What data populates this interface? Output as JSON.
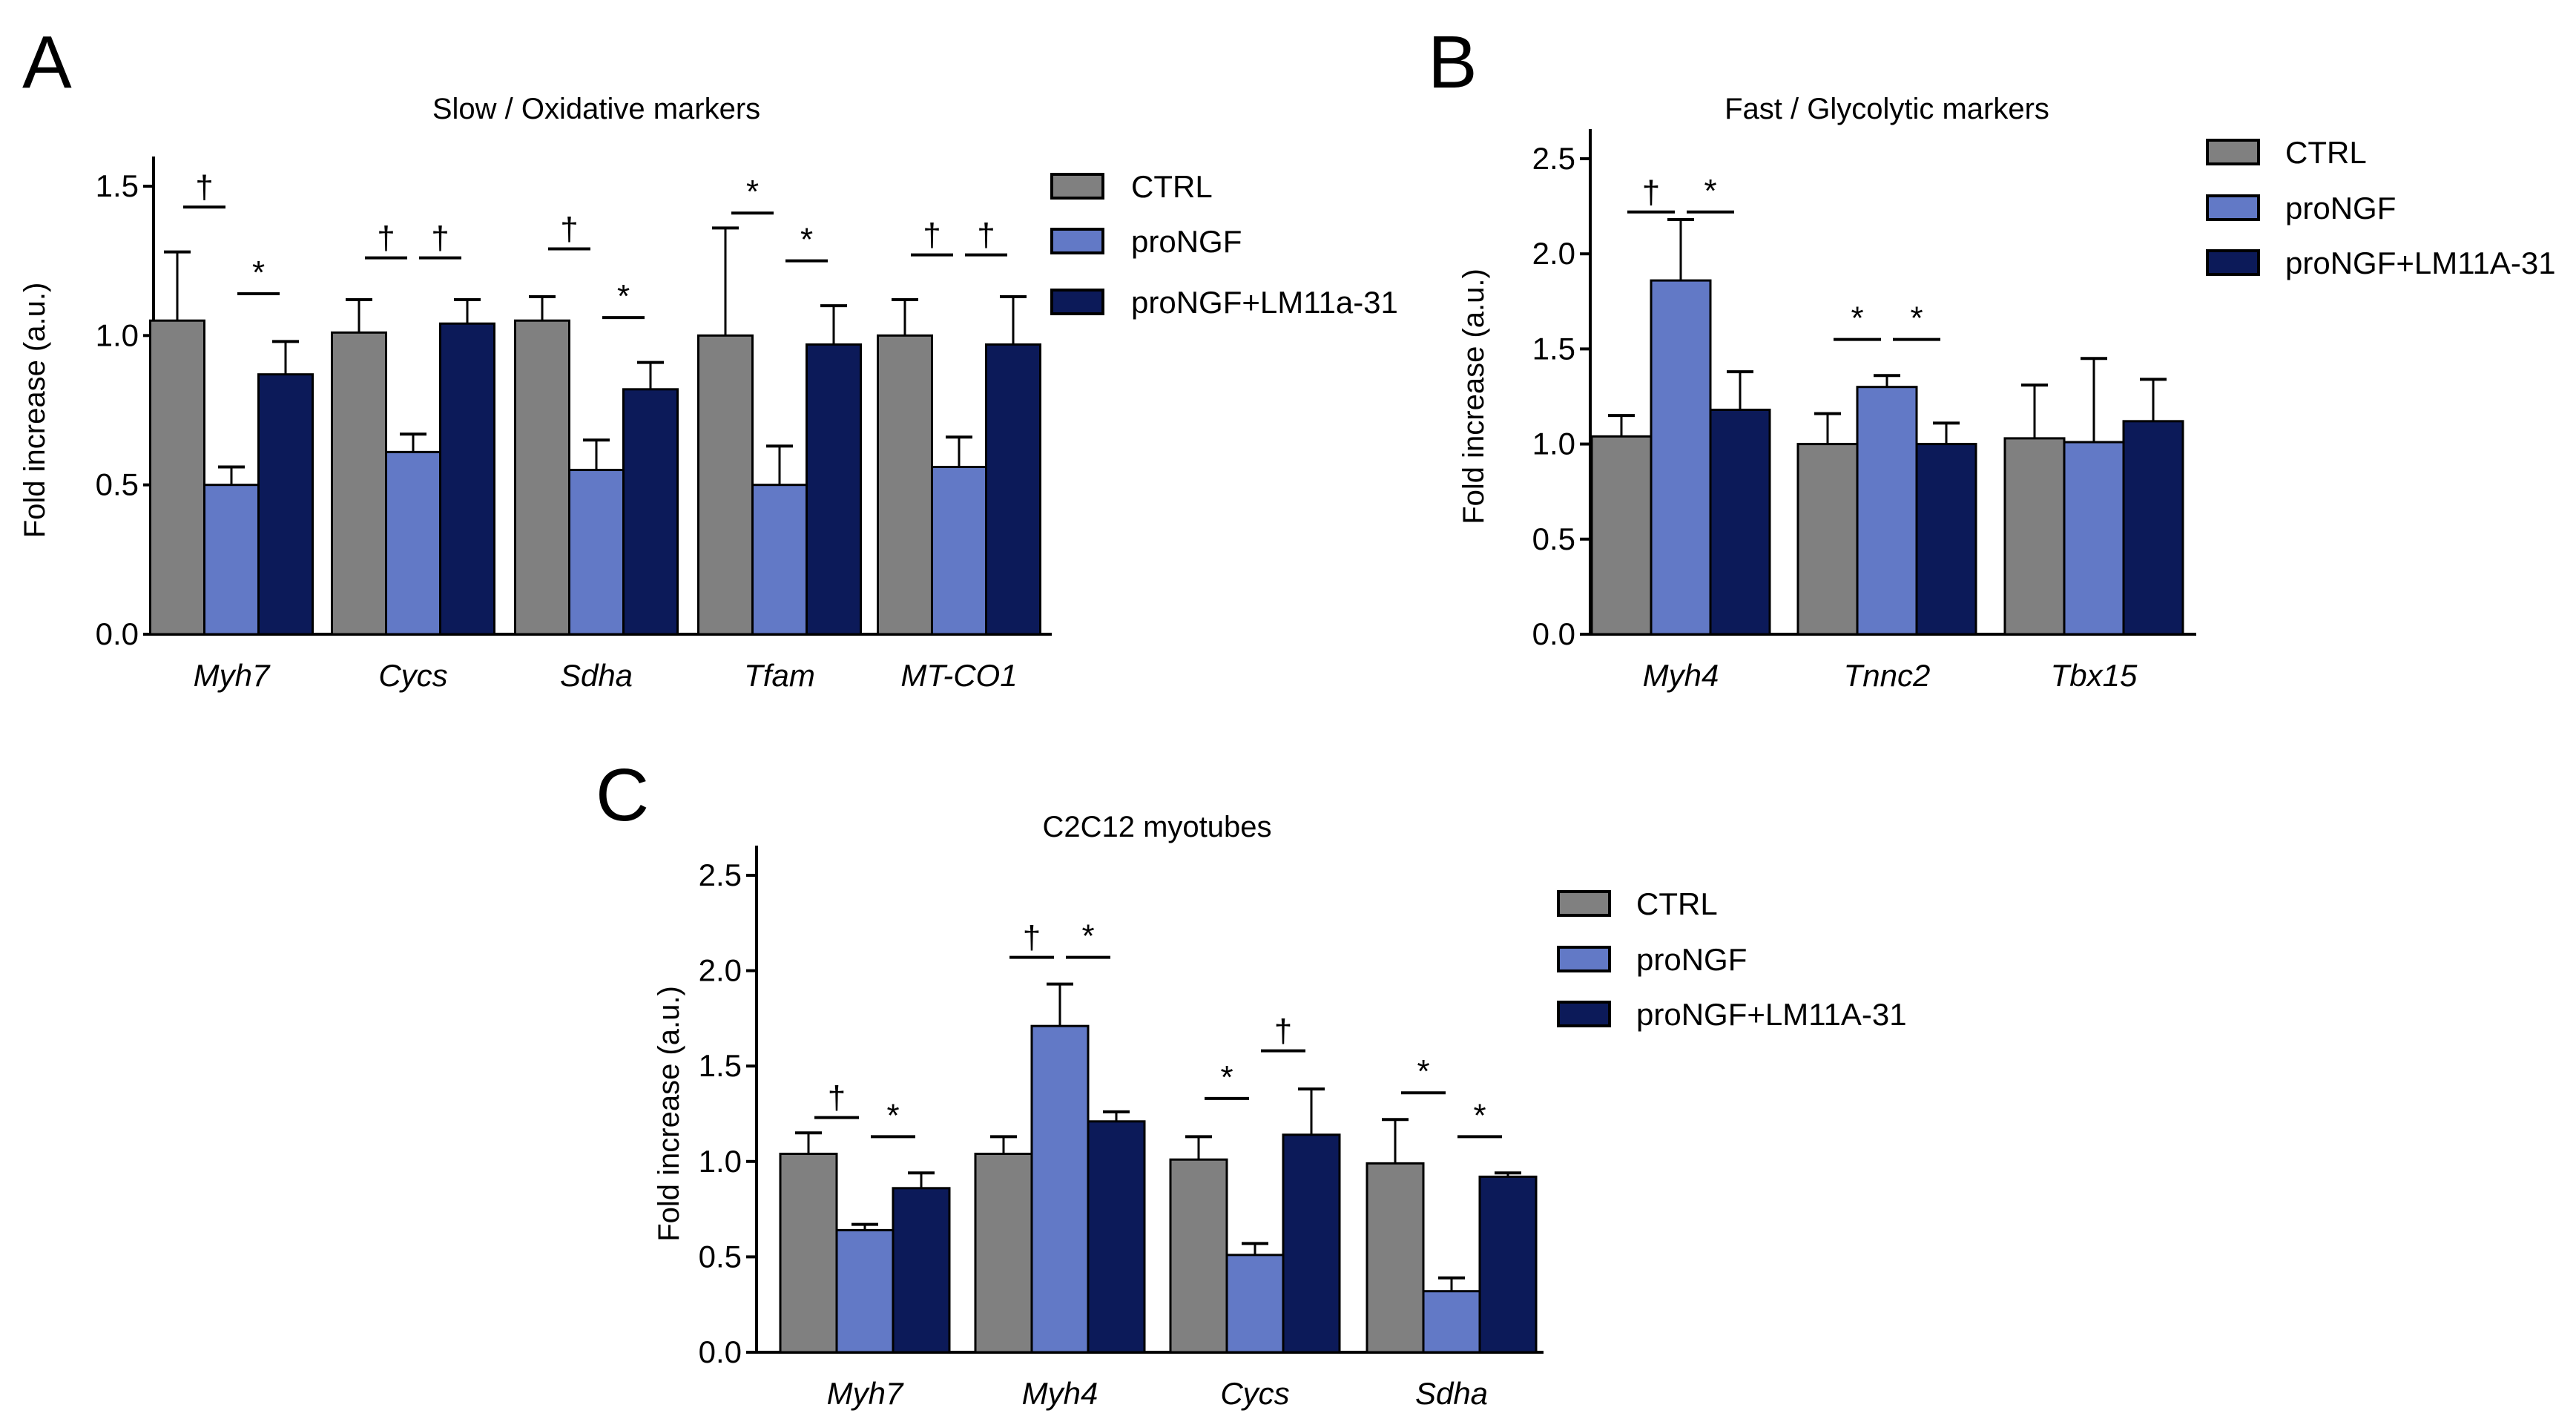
{
  "chart_data": [
    {
      "type": "bar",
      "panel": "A",
      "title": "Slow / Oxidative markers",
      "ylabel": "Fold increase (a.u.)",
      "xlabel": "",
      "ylim": [
        0,
        1.5
      ],
      "yticks": [
        "0.0",
        "0.5",
        "1.0",
        "1.5"
      ],
      "legend_position": "right",
      "categories": [
        "Myh7",
        "Cycs",
        "Sdha",
        "Tfam",
        "MT-CO1"
      ],
      "series": [
        {
          "name": "CTRL",
          "color": "#808080",
          "values": [
            1.05,
            1.01,
            1.05,
            1.0,
            1.0
          ],
          "errors": [
            1.28,
            1.12,
            1.13,
            1.36,
            1.12
          ]
        },
        {
          "name": "proNGF",
          "color": "#6279c6",
          "values": [
            0.5,
            0.61,
            0.55,
            0.5,
            0.56
          ],
          "errors": [
            0.56,
            0.67,
            0.65,
            0.63,
            0.66
          ]
        },
        {
          "name": "proNGF+LM11a-31",
          "color": "#0c1a59",
          "values": [
            0.87,
            1.04,
            0.82,
            0.97,
            0.97
          ],
          "errors": [
            0.98,
            1.12,
            0.91,
            1.1,
            1.13
          ]
        }
      ],
      "annotations": [
        {
          "group": 0,
          "pair": [
            0,
            1
          ],
          "symbol": "†",
          "y": 1.43
        },
        {
          "group": 0,
          "pair": [
            1,
            2
          ],
          "symbol": "*",
          "y": 1.14
        },
        {
          "group": 1,
          "pair": [
            0,
            1
          ],
          "symbol": "†",
          "y": 1.26
        },
        {
          "group": 1,
          "pair": [
            1,
            2
          ],
          "symbol": "†",
          "y": 1.26
        },
        {
          "group": 2,
          "pair": [
            0,
            1
          ],
          "symbol": "†",
          "y": 1.29
        },
        {
          "group": 2,
          "pair": [
            1,
            2
          ],
          "symbol": "*",
          "y": 1.06
        },
        {
          "group": 3,
          "pair": [
            0,
            1
          ],
          "symbol": "*",
          "y": 1.41
        },
        {
          "group": 3,
          "pair": [
            1,
            2
          ],
          "symbol": "*",
          "y": 1.25
        },
        {
          "group": 4,
          "pair": [
            0,
            1
          ],
          "symbol": "†",
          "y": 1.27
        },
        {
          "group": 4,
          "pair": [
            1,
            2
          ],
          "symbol": "†",
          "y": 1.27
        }
      ]
    },
    {
      "type": "bar",
      "panel": "B",
      "title": "Fast / Glycolytic markers",
      "ylabel": "Fold increase (a.u.)",
      "xlabel": "",
      "ylim": [
        0,
        2.5
      ],
      "yticks": [
        "0.0",
        "0.5",
        "1.0",
        "1.5",
        "2.0",
        "2.5"
      ],
      "legend_position": "right",
      "categories": [
        "Myh4",
        "Tnnc2",
        "Tbx15"
      ],
      "series": [
        {
          "name": "CTRL",
          "color": "#808080",
          "values": [
            1.04,
            1.0,
            1.03
          ],
          "errors": [
            1.15,
            1.16,
            1.31
          ]
        },
        {
          "name": "proNGF",
          "color": "#6279c6",
          "values": [
            1.86,
            1.3,
            1.01
          ],
          "errors": [
            2.18,
            1.36,
            1.45
          ]
        },
        {
          "name": "proNGF+LM11A-31",
          "color": "#0c1a59",
          "values": [
            1.18,
            1.0,
            1.12
          ],
          "errors": [
            1.38,
            1.11,
            1.34
          ]
        }
      ],
      "annotations": [
        {
          "group": 0,
          "pair": [
            0,
            1
          ],
          "symbol": "†",
          "y": 2.22
        },
        {
          "group": 0,
          "pair": [
            1,
            2
          ],
          "symbol": "*",
          "y": 2.22
        },
        {
          "group": 1,
          "pair": [
            0,
            1
          ],
          "symbol": "*",
          "y": 1.55
        },
        {
          "group": 1,
          "pair": [
            1,
            2
          ],
          "symbol": "*",
          "y": 1.55
        }
      ]
    },
    {
      "type": "bar",
      "panel": "C",
      "title": "C2C12 myotubes",
      "ylabel": "Fold increase (a.u.)",
      "xlabel": "",
      "ylim": [
        0,
        2.5
      ],
      "yticks": [
        "0.0",
        "0.5",
        "1.0",
        "1.5",
        "2.0",
        "2.5"
      ],
      "legend_position": "right",
      "categories": [
        "Myh7",
        "Myh4",
        "Cycs",
        "Sdha"
      ],
      "series": [
        {
          "name": "CTRL",
          "color": "#808080",
          "values": [
            1.04,
            1.04,
            1.01,
            0.99
          ],
          "errors": [
            1.15,
            1.13,
            1.13,
            1.22
          ]
        },
        {
          "name": "proNGF",
          "color": "#6279c6",
          "values": [
            0.64,
            1.71,
            0.51,
            0.32
          ],
          "errors": [
            0.67,
            1.93,
            0.57,
            0.39
          ]
        },
        {
          "name": "proNGF+LM11A-31",
          "color": "#0c1a59",
          "values": [
            0.86,
            1.21,
            1.14,
            0.92
          ],
          "errors": [
            0.94,
            1.26,
            1.38,
            0.94
          ]
        }
      ],
      "annotations": [
        {
          "group": 0,
          "pair": [
            0,
            1
          ],
          "symbol": "†",
          "y": 1.23
        },
        {
          "group": 0,
          "pair": [
            1,
            2
          ],
          "symbol": "*",
          "y": 1.13
        },
        {
          "group": 1,
          "pair": [
            0,
            1
          ],
          "symbol": "†",
          "y": 2.07
        },
        {
          "group": 1,
          "pair": [
            1,
            2
          ],
          "symbol": "*",
          "y": 2.07
        },
        {
          "group": 2,
          "pair": [
            0,
            1
          ],
          "symbol": "*",
          "y": 1.33
        },
        {
          "group": 2,
          "pair": [
            1,
            2
          ],
          "symbol": "†",
          "y": 1.58
        },
        {
          "group": 3,
          "pair": [
            0,
            1
          ],
          "symbol": "*",
          "y": 1.36
        },
        {
          "group": 3,
          "pair": [
            1,
            2
          ],
          "symbol": "*",
          "y": 1.13
        }
      ]
    }
  ]
}
